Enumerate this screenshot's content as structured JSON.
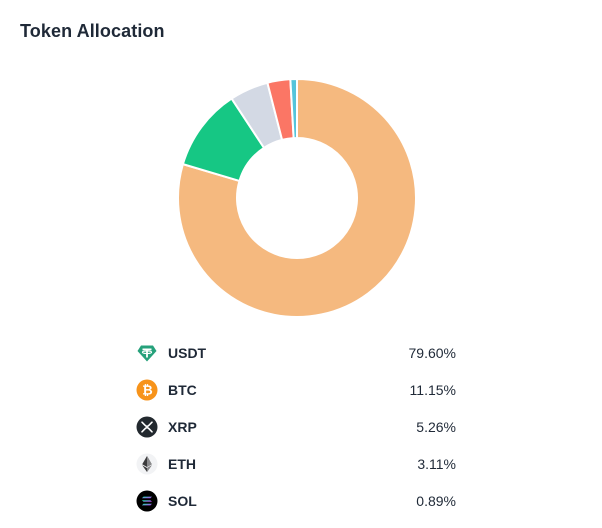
{
  "header": {
    "title": "Token Allocation"
  },
  "chart_data": {
    "type": "pie",
    "title": "Token Allocation",
    "legend_position": "bottom",
    "categories": [
      "USDT",
      "BTC",
      "XRP",
      "ETH",
      "SOL"
    ],
    "values": [
      79.6,
      11.15,
      5.26,
      3.11,
      0.89
    ],
    "labels": [
      "79.60%",
      "11.15%",
      "5.26%",
      "3.11%",
      "0.89%"
    ],
    "colors": [
      "#f5b97f",
      "#16c784",
      "#d3d9e4",
      "#fb7665",
      "#56c4da"
    ],
    "donut": true
  },
  "legend": {
    "items": [
      {
        "name": "USDT",
        "value": "79.60%",
        "icon": "tether-icon"
      },
      {
        "name": "BTC",
        "value": "11.15%",
        "icon": "bitcoin-icon"
      },
      {
        "name": "XRP",
        "value": "5.26%",
        "icon": "xrp-icon"
      },
      {
        "name": "ETH",
        "value": "3.11%",
        "icon": "ethereum-icon"
      },
      {
        "name": "SOL",
        "value": "0.89%",
        "icon": "solana-icon"
      }
    ]
  },
  "icon_colors": {
    "tether": "#26a17b",
    "bitcoin": "#f7931a",
    "xrp": "#23292f",
    "ethereum": "#3c3c3d",
    "solana": "#000000"
  }
}
